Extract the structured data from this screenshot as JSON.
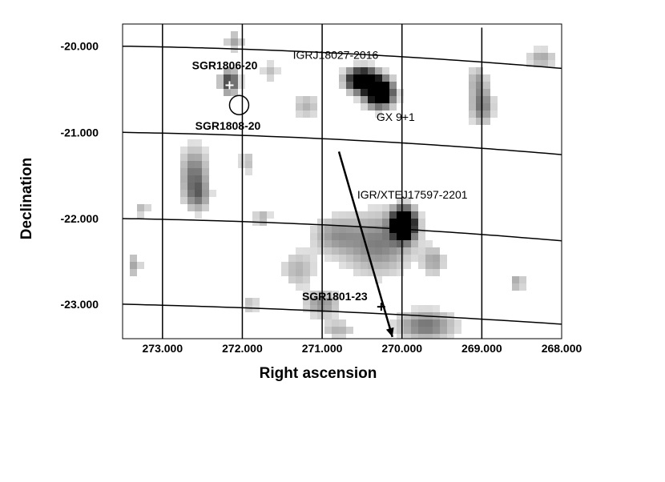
{
  "chart_data": {
    "type": "heatmap",
    "title": "",
    "xlabel": "Right ascension",
    "ylabel": "Declination",
    "x_ticks": [
      "273.000",
      "272.000",
      "271.000",
      "270.000",
      "269.000",
      "268.000"
    ],
    "y_ticks": [
      "-20.000",
      "-21.000",
      "-22.000",
      "-23.000"
    ],
    "xlim": [
      273.5,
      268.0
    ],
    "ylim": [
      -23.35,
      -19.7
    ],
    "colormap": "grayscale (white = low, black = high significance)",
    "grid": true,
    "sources": [
      {
        "name": "SGR1806-20",
        "ra": 272.16,
        "dec": -20.41,
        "marker": "white-cross",
        "label_bold": true
      },
      {
        "name": "SGR1808-20",
        "ra": 272.04,
        "dec": -20.64,
        "marker": "circle",
        "label_bold": true
      },
      {
        "name": "IGRJ18027-2016",
        "ra": 270.68,
        "dec": -20.27,
        "marker": "none",
        "label_bold": false
      },
      {
        "name": "GX 9+1",
        "ra": 270.38,
        "dec": -20.45,
        "marker": "none",
        "label_bold": false
      },
      {
        "name": "IGR/XTEJ17597-2201",
        "ra": 269.95,
        "dec": -22.02,
        "marker": "none",
        "label_bold": false
      },
      {
        "name": "SGR1801-23",
        "ra": 270.26,
        "dec": -22.98,
        "marker": "black-cross",
        "label_bold": true
      }
    ],
    "arrow": {
      "from": {
        "ra": 270.79,
        "dec": -21.18
      },
      "to": {
        "ra": 270.12,
        "dec": -23.33
      }
    },
    "blobs": [
      {
        "ra": 270.5,
        "dec": -20.35,
        "sra": 0.13,
        "sdec": 0.09,
        "amp": 1.6
      },
      {
        "ra": 270.28,
        "dec": -20.5,
        "sra": 0.12,
        "sdec": 0.11,
        "amp": 1.6
      },
      {
        "ra": 269.98,
        "dec": -22.02,
        "sra": 0.1,
        "sdec": 0.12,
        "amp": 1.9
      },
      {
        "ra": 272.16,
        "dec": -20.37,
        "sra": 0.08,
        "sdec": 0.1,
        "amp": 0.8
      },
      {
        "ra": 272.1,
        "dec": -19.9,
        "sra": 0.08,
        "sdec": 0.08,
        "amp": 0.35
      },
      {
        "ra": 272.6,
        "dec": -21.45,
        "sra": 0.12,
        "sdec": 0.22,
        "amp": 0.55
      },
      {
        "ra": 272.55,
        "dec": -21.7,
        "sra": 0.1,
        "sdec": 0.12,
        "amp": 0.35
      },
      {
        "ra": 271.95,
        "dec": -21.3,
        "sra": 0.05,
        "sdec": 0.1,
        "amp": 0.3
      },
      {
        "ra": 271.2,
        "dec": -20.65,
        "sra": 0.12,
        "sdec": 0.1,
        "amp": 0.3
      },
      {
        "ra": 270.3,
        "dec": -22.25,
        "sra": 0.3,
        "sdec": 0.25,
        "amp": 0.5
      },
      {
        "ra": 270.85,
        "dec": -22.15,
        "sra": 0.2,
        "sdec": 0.15,
        "amp": 0.35
      },
      {
        "ra": 271.3,
        "dec": -22.55,
        "sra": 0.15,
        "sdec": 0.15,
        "amp": 0.3
      },
      {
        "ra": 271.0,
        "dec": -22.95,
        "sra": 0.15,
        "sdec": 0.1,
        "amp": 0.45
      },
      {
        "ra": 269.7,
        "dec": -23.2,
        "sra": 0.25,
        "sdec": 0.12,
        "amp": 0.55
      },
      {
        "ra": 269.6,
        "dec": -22.45,
        "sra": 0.1,
        "sdec": 0.12,
        "amp": 0.35
      },
      {
        "ra": 269.0,
        "dec": -20.65,
        "sra": 0.1,
        "sdec": 0.15,
        "amp": 0.55
      },
      {
        "ra": 269.05,
        "dec": -20.35,
        "sra": 0.08,
        "sdec": 0.12,
        "amp": 0.35
      },
      {
        "ra": 268.25,
        "dec": -20.1,
        "sra": 0.12,
        "sdec": 0.08,
        "amp": 0.35
      },
      {
        "ra": 268.55,
        "dec": -22.7,
        "sra": 0.06,
        "sdec": 0.06,
        "amp": 0.4
      },
      {
        "ra": 271.75,
        "dec": -21.95,
        "sra": 0.08,
        "sdec": 0.08,
        "amp": 0.3
      },
      {
        "ra": 273.35,
        "dec": -22.5,
        "sra": 0.06,
        "sdec": 0.1,
        "amp": 0.35
      },
      {
        "ra": 273.25,
        "dec": -21.85,
        "sra": 0.06,
        "sdec": 0.06,
        "amp": 0.3
      },
      {
        "ra": 271.65,
        "dec": -20.25,
        "sra": 0.08,
        "sdec": 0.08,
        "amp": 0.25
      },
      {
        "ra": 270.8,
        "dec": -23.25,
        "sra": 0.15,
        "sdec": 0.08,
        "amp": 0.3
      },
      {
        "ra": 271.9,
        "dec": -22.95,
        "sra": 0.08,
        "sdec": 0.08,
        "amp": 0.25
      }
    ]
  }
}
